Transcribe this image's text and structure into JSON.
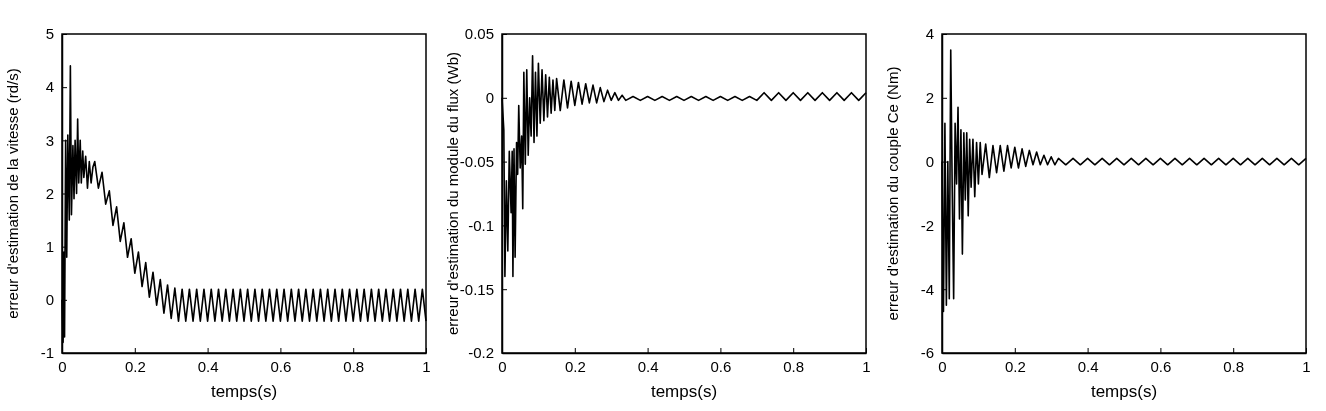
{
  "chart_data": [
    {
      "type": "line",
      "xlabel": "temps(s)",
      "ylabel": "erreur d'estimation de la vitesse (rd/s)",
      "xlim": [
        0,
        1
      ],
      "ylim": [
        -1,
        5
      ],
      "xticks": [
        0,
        0.2,
        0.4,
        0.6,
        0.8,
        1
      ],
      "yticks": [
        -1,
        0,
        1,
        2,
        3,
        4,
        5
      ],
      "series": [
        {
          "color": "#000000",
          "x": [
            0,
            0.003,
            0.005,
            0.007,
            0.01,
            0.013,
            0.016,
            0.02,
            0.023,
            0.026,
            0.03,
            0.033,
            0.036,
            0.04,
            0.043,
            0.046,
            0.05,
            0.053,
            0.057,
            0.06,
            0.065,
            0.07,
            0.075,
            0.08,
            0.085,
            0.09,
            0.1,
            0.11,
            0.12,
            0.13,
            0.14,
            0.15,
            0.16,
            0.17,
            0.18,
            0.19,
            0.2,
            0.21,
            0.22,
            0.23,
            0.24,
            0.25,
            0.26,
            0.27,
            0.28,
            0.29,
            0.3,
            0.31,
            0.32,
            0.33,
            0.34,
            0.35,
            0.36,
            0.37,
            0.38,
            0.39,
            0.4,
            0.41,
            0.42,
            0.43,
            0.44,
            0.45,
            0.46,
            0.47,
            0.48,
            0.49,
            0.5,
            0.51,
            0.52,
            0.53,
            0.54,
            0.55,
            0.56,
            0.57,
            0.58,
            0.59,
            0.6,
            0.61,
            0.62,
            0.63,
            0.64,
            0.65,
            0.66,
            0.67,
            0.68,
            0.69,
            0.7,
            0.71,
            0.72,
            0.73,
            0.74,
            0.75,
            0.76,
            0.77,
            0.78,
            0.79,
            0.8,
            0.81,
            0.82,
            0.83,
            0.84,
            0.85,
            0.86,
            0.87,
            0.88,
            0.89,
            0.9,
            0.91,
            0.92,
            0.93,
            0.94,
            0.95,
            0.96,
            0.97,
            0.98,
            0.99,
            1
          ],
          "values": [
            0,
            -0.8,
            0.9,
            -0.7,
            3.0,
            0.8,
            3.1,
            1.5,
            4.4,
            1.6,
            2.9,
            1.9,
            3.0,
            2.0,
            3.4,
            2.2,
            3.0,
            2.2,
            2.8,
            2.3,
            2.7,
            2.1,
            2.6,
            2.2,
            2.5,
            2.6,
            2.1,
            2.4,
            1.8,
            2.05,
            1.4,
            1.75,
            1.1,
            1.45,
            0.8,
            1.15,
            0.5,
            0.9,
            0.25,
            0.7,
            0.05,
            0.52,
            -0.1,
            0.38,
            -0.25,
            0.28,
            -0.35,
            0.22,
            -0.4,
            0.2,
            -0.4,
            0.2,
            -0.4,
            0.2,
            -0.4,
            0.2,
            -0.4,
            0.2,
            -0.4,
            0.2,
            -0.4,
            0.2,
            -0.4,
            0.2,
            -0.4,
            0.2,
            -0.4,
            0.2,
            -0.4,
            0.2,
            -0.4,
            0.2,
            -0.4,
            0.2,
            -0.4,
            0.2,
            -0.4,
            0.2,
            -0.4,
            0.2,
            -0.4,
            0.2,
            -0.4,
            0.2,
            -0.4,
            0.2,
            -0.4,
            0.2,
            -0.4,
            0.2,
            -0.4,
            0.2,
            -0.4,
            0.2,
            -0.4,
            0.2,
            -0.4,
            0.2,
            -0.4,
            0.2,
            -0.4,
            0.2,
            -0.4,
            0.2,
            -0.4,
            0.2,
            -0.4,
            0.2,
            -0.4,
            0.2,
            -0.4,
            0.2,
            -0.4,
            0.2,
            -0.4,
            0.2,
            -0.4
          ]
        }
      ]
    },
    {
      "type": "line",
      "xlabel": "temps(s)",
      "ylabel": "erreur d'estimation du module du flux (Wb)",
      "xlim": [
        0,
        1
      ],
      "ylim": [
        -0.2,
        0.05
      ],
      "xticks": [
        0,
        0.2,
        0.4,
        0.6,
        0.8,
        1
      ],
      "yticks": [
        -0.2,
        -0.15,
        -0.1,
        -0.05,
        0,
        0.05
      ],
      "series": [
        {
          "color": "#000000",
          "x": [
            0,
            0.005,
            0.008,
            0.012,
            0.016,
            0.02,
            0.025,
            0.028,
            0.03,
            0.033,
            0.036,
            0.04,
            0.043,
            0.046,
            0.05,
            0.054,
            0.057,
            0.06,
            0.064,
            0.068,
            0.072,
            0.076,
            0.08,
            0.084,
            0.088,
            0.092,
            0.096,
            0.1,
            0.105,
            0.11,
            0.115,
            0.12,
            0.125,
            0.13,
            0.135,
            0.14,
            0.145,
            0.15,
            0.16,
            0.17,
            0.18,
            0.19,
            0.2,
            0.21,
            0.22,
            0.23,
            0.24,
            0.25,
            0.26,
            0.27,
            0.28,
            0.29,
            0.3,
            0.31,
            0.32,
            0.33,
            0.34,
            0.36,
            0.38,
            0.4,
            0.42,
            0.44,
            0.46,
            0.48,
            0.5,
            0.52,
            0.54,
            0.56,
            0.58,
            0.6,
            0.62,
            0.64,
            0.66,
            0.68,
            0.7,
            0.72,
            0.74,
            0.76,
            0.78,
            0.8,
            0.82,
            0.84,
            0.86,
            0.88,
            0.9,
            0.92,
            0.94,
            0.96,
            0.98,
            1
          ],
          "values": [
            0,
            -0.025,
            -0.14,
            -0.065,
            -0.12,
            -0.042,
            -0.09,
            -0.042,
            -0.14,
            -0.04,
            -0.125,
            -0.035,
            -0.06,
            -0.006,
            -0.055,
            -0.03,
            -0.087,
            0.02,
            -0.052,
            0.022,
            -0.045,
            0.0,
            -0.03,
            0.033,
            -0.035,
            0.02,
            -0.03,
            0.027,
            -0.02,
            0.022,
            -0.018,
            0.018,
            -0.015,
            0.016,
            -0.012,
            0.014,
            -0.01,
            0.015,
            -0.01,
            0.014,
            -0.008,
            0.013,
            -0.006,
            0.012,
            -0.005,
            0.011,
            -0.004,
            0.01,
            -0.004,
            0.008,
            -0.003,
            0.006,
            -0.002,
            0.004,
            -0.002,
            0.002,
            -0.002,
            0.001,
            -0.002,
            0.001,
            -0.002,
            0.001,
            -0.002,
            0.001,
            -0.002,
            0.001,
            -0.002,
            0.001,
            -0.002,
            0.001,
            -0.002,
            0.001,
            -0.002,
            0.001,
            -0.002,
            0.004,
            -0.002,
            0.004,
            -0.002,
            0.004,
            -0.002,
            0.004,
            -0.002,
            0.004,
            -0.002,
            0.004,
            -0.002,
            0.004,
            -0.002,
            0.004
          ]
        }
      ]
    },
    {
      "type": "line",
      "xlabel": "temps(s)",
      "ylabel": "erreur d'estimation du couple Ce (Nm)",
      "xlim": [
        0,
        1
      ],
      "ylim": [
        -6,
        4
      ],
      "xticks": [
        0,
        0.2,
        0.4,
        0.6,
        0.8,
        1
      ],
      "yticks": [
        -6,
        -4,
        -2,
        0,
        2,
        4
      ],
      "series": [
        {
          "color": "#000000",
          "x": [
            0,
            0.004,
            0.008,
            0.012,
            0.016,
            0.02,
            0.024,
            0.028,
            0.032,
            0.036,
            0.04,
            0.044,
            0.048,
            0.052,
            0.056,
            0.06,
            0.064,
            0.068,
            0.072,
            0.076,
            0.08,
            0.085,
            0.09,
            0.095,
            0.1,
            0.105,
            0.11,
            0.12,
            0.13,
            0.14,
            0.15,
            0.16,
            0.17,
            0.18,
            0.19,
            0.2,
            0.21,
            0.22,
            0.23,
            0.24,
            0.25,
            0.26,
            0.27,
            0.28,
            0.29,
            0.3,
            0.31,
            0.32,
            0.34,
            0.36,
            0.38,
            0.4,
            0.42,
            0.44,
            0.46,
            0.48,
            0.5,
            0.52,
            0.54,
            0.56,
            0.58,
            0.6,
            0.62,
            0.64,
            0.66,
            0.68,
            0.7,
            0.72,
            0.74,
            0.76,
            0.78,
            0.8,
            0.82,
            0.84,
            0.86,
            0.88,
            0.9,
            0.92,
            0.94,
            0.96,
            0.98,
            1
          ],
          "values": [
            0,
            -4.7,
            1.2,
            -4.5,
            0.0,
            -4.3,
            3.5,
            -0.8,
            -4.3,
            1.2,
            -0.7,
            1.7,
            -1.8,
            1.0,
            -2.9,
            0.9,
            -1.2,
            0.9,
            -1.7,
            0.7,
            -0.8,
            0.7,
            -1.1,
            0.6,
            -0.7,
            0.6,
            -0.4,
            0.55,
            -0.5,
            0.5,
            -0.35,
            0.5,
            -0.3,
            0.5,
            -0.2,
            0.45,
            -0.2,
            0.4,
            -0.15,
            0.35,
            -0.1,
            0.3,
            -0.1,
            0.2,
            -0.1,
            0.15,
            -0.1,
            0.1,
            -0.1,
            0.1,
            -0.1,
            0.1,
            -0.1,
            0.1,
            -0.1,
            0.1,
            -0.1,
            0.1,
            -0.1,
            0.1,
            -0.1,
            0.1,
            -0.1,
            0.1,
            -0.1,
            0.1,
            -0.1,
            0.1,
            -0.1,
            0.1,
            -0.1,
            0.1,
            -0.1,
            0.1,
            -0.1,
            0.1,
            -0.1,
            0.1,
            -0.1,
            0.1,
            -0.1,
            0.1
          ]
        }
      ]
    }
  ]
}
